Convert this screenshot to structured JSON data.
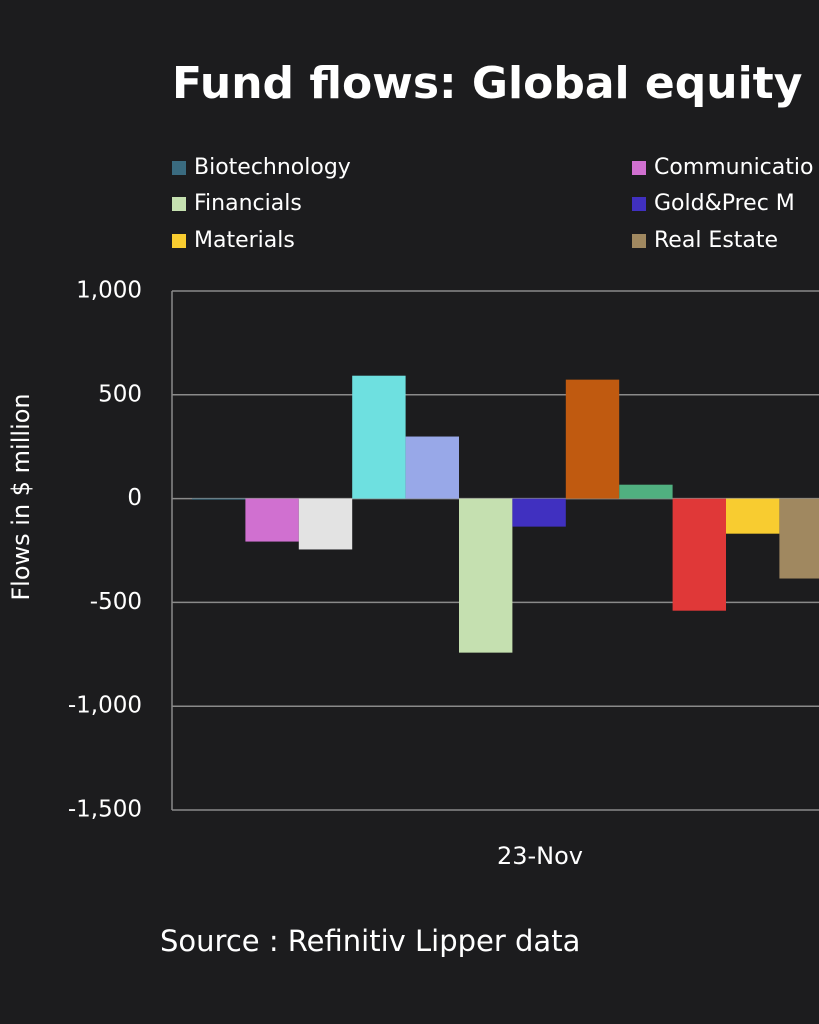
{
  "chart_data": {
    "type": "bar",
    "title": "Fund flows: Global equity",
    "categories": [
      "23-Nov"
    ],
    "y_label": "Flows in $ million",
    "source": "Source : Refinitiv Lipper data",
    "ylim": [
      -1500,
      1000
    ],
    "yticks": [
      {
        "value": 1000,
        "label": "1,000"
      },
      500,
      0,
      -500,
      {
        "value": -1000,
        "label": "-1,000"
      },
      {
        "value": -1500,
        "label": "-1,500"
      }
    ],
    "grid": true,
    "series": [
      {
        "name": "Biotechnology",
        "color": "#3a6b80",
        "values": [
          -5
        ]
      },
      {
        "name": "Communicatio",
        "color": "#d070d0",
        "values": [
          -207
        ]
      },
      {
        "color": "#e3e3e3",
        "values": [
          -245
        ]
      },
      {
        "color": "#6ee0e0",
        "values": [
          592
        ]
      },
      {
        "color": "#98a8e8",
        "values": [
          299
        ]
      },
      {
        "name": "Financials",
        "color": "#c5e0b0",
        "values": [
          -742
        ]
      },
      {
        "name": "Gold&Prec M",
        "color": "#4030c0",
        "values": [
          -135
        ]
      },
      {
        "color": "#c05a10",
        "values": [
          573
        ]
      },
      {
        "color": "#50b080",
        "values": [
          67
        ]
      },
      {
        "color": "#e03838",
        "values": [
          -540
        ]
      },
      {
        "name": "Materials",
        "color": "#f8cc30",
        "values": [
          -169
        ]
      },
      {
        "name": "Real Estate",
        "color": "#a08860",
        "values": [
          -385
        ]
      }
    ]
  }
}
